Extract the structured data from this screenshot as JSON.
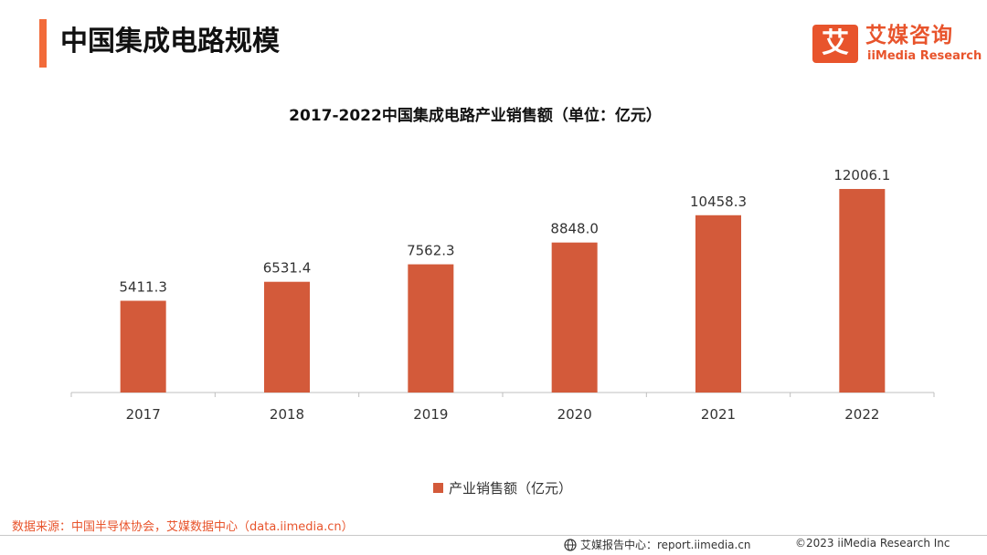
{
  "header": {
    "title": "中国集成电路规模"
  },
  "logo": {
    "mark": "艾",
    "name_cn": "艾媒咨询",
    "name_en": "iiMedia Research"
  },
  "chart_data": {
    "type": "bar",
    "title": "2017-2022中国集成电路产业销售额（单位：亿元）",
    "categories": [
      "2017",
      "2018",
      "2019",
      "2020",
      "2021",
      "2022"
    ],
    "series": [
      {
        "name": "产业销售额（亿元）",
        "values": [
          5411.3,
          6531.4,
          7562.3,
          8848.0,
          10458.3,
          12006.1
        ],
        "labels": [
          "5411.3",
          "6531.4",
          "7562.3",
          "8848.0",
          "10458.3",
          "12006.1"
        ]
      }
    ],
    "ylim": [
      0,
      14000
    ],
    "grid": false,
    "legend_position": "bottom",
    "bar_color": "#d35a3a"
  },
  "footer": {
    "source": "数据来源：中国半导体协会，艾媒数据中心（data.iimedia.cn）",
    "report_site": "艾媒报告中心：report.iimedia.cn",
    "copyright": "©2023  iiMedia Research  Inc"
  },
  "icons": {
    "footer_left": "globe-icon"
  }
}
